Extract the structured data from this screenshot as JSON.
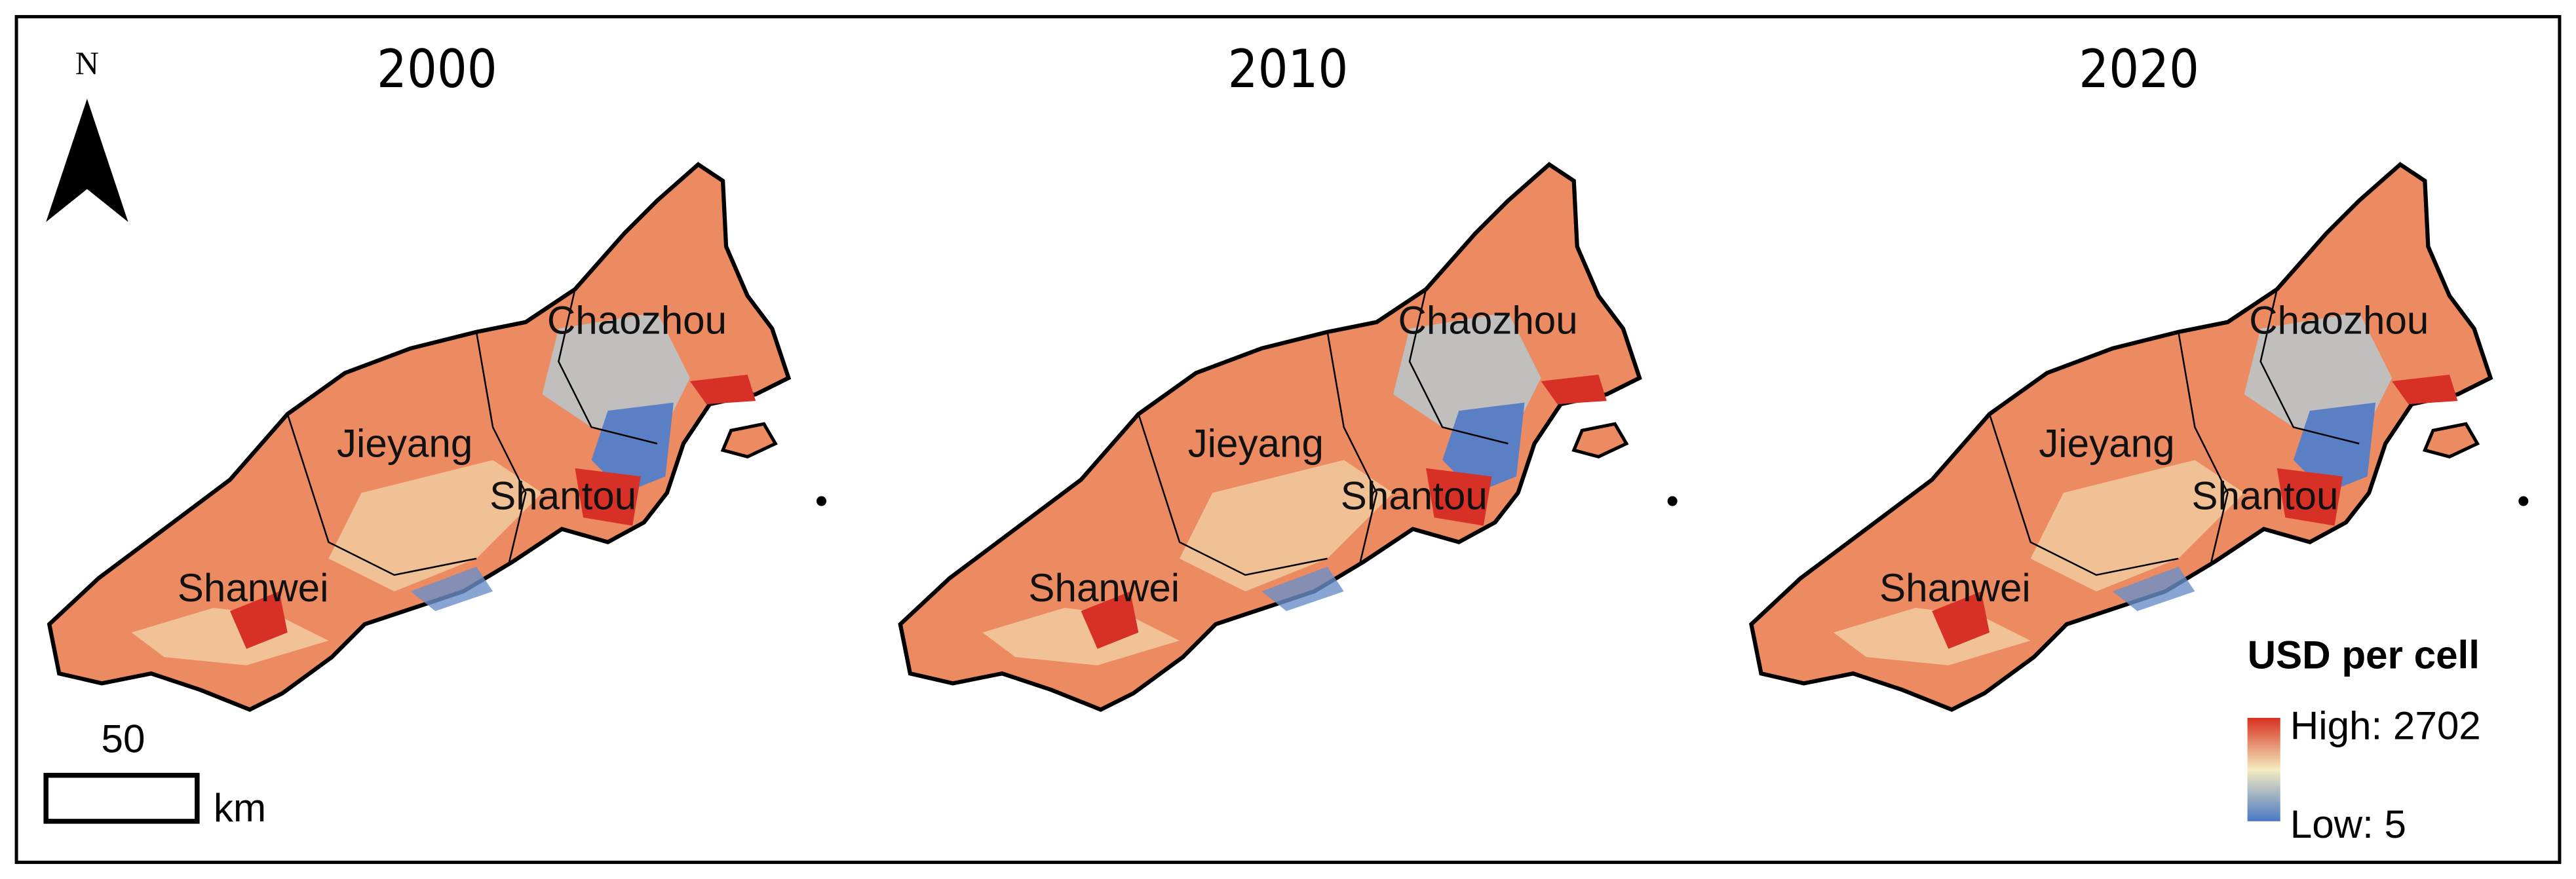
{
  "north_arrow": {
    "label": "N"
  },
  "panels": [
    {
      "year": "2000",
      "places": [
        "Chaozhou",
        "Jieyang",
        "Shantou",
        "Shanwei"
      ]
    },
    {
      "year": "2010",
      "places": [
        "Chaozhou",
        "Jieyang",
        "Shantou",
        "Shanwei"
      ]
    },
    {
      "year": "2020",
      "places": [
        "Chaozhou",
        "Jieyang",
        "Shantou",
        "Shanwei"
      ]
    }
  ],
  "scale_bar": {
    "distance": "50",
    "unit": "km"
  },
  "legend": {
    "title": "USD per cell",
    "high": "High: 2702",
    "low": "Low: 5"
  }
}
